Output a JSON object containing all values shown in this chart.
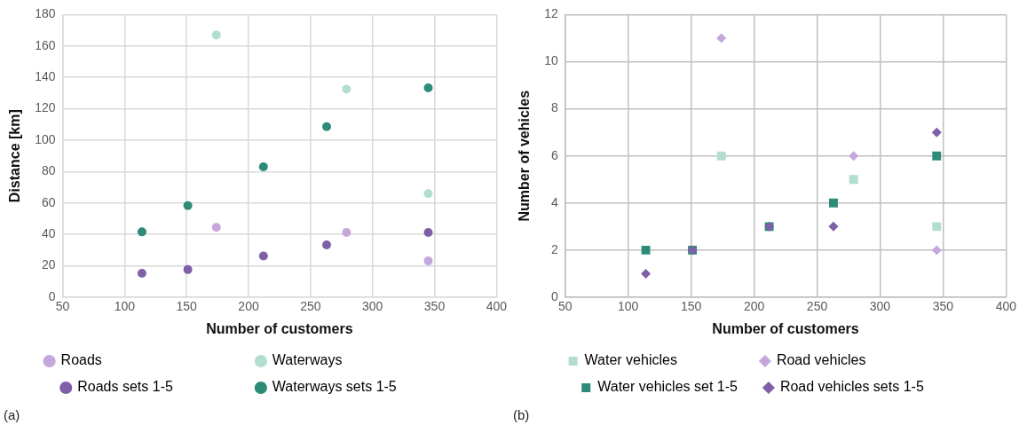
{
  "chart_data": [
    {
      "type": "scatter",
      "xlabel": "Number of customers",
      "ylabel": "Distance [km]",
      "xlim": [
        50,
        400
      ],
      "xticks": [
        50,
        100,
        150,
        200,
        250,
        300,
        350,
        400
      ],
      "ylim": [
        0,
        180
      ],
      "yticks": [
        0,
        20,
        40,
        60,
        80,
        100,
        120,
        140,
        160,
        180
      ],
      "grid": true,
      "legend": "bottom",
      "marker": "circle",
      "annotations": [
        "(a)"
      ],
      "series": [
        {
          "name": "Roads",
          "color": "#c5a7dc",
          "x": [
            174,
            279,
            345
          ],
          "values": [
            44.5,
            41.2,
            23.1
          ]
        },
        {
          "name": "Waterways",
          "color": "#b3ddd0",
          "x": [
            174,
            279,
            345
          ],
          "values": [
            167,
            132.5,
            66
          ]
        },
        {
          "name": "Roads sets 1-5",
          "color": "#7f5fa8",
          "x": [
            114,
            151,
            212,
            263,
            345
          ],
          "values": [
            15.3,
            17.6,
            26.3,
            33.3,
            41.2
          ]
        },
        {
          "name": "Waterways sets 1-5",
          "color": "#2e8b78",
          "x": [
            114,
            151,
            212,
            263,
            345
          ],
          "values": [
            41.6,
            58.4,
            83.1,
            108.6,
            133.3
          ]
        }
      ]
    },
    {
      "type": "scatter",
      "xlabel": "Number of customers",
      "ylabel": "Number of vehicles",
      "xlim": [
        50,
        400
      ],
      "xticks": [
        50,
        100,
        150,
        200,
        250,
        300,
        350,
        400
      ],
      "ylim": [
        0,
        12
      ],
      "yticks": [
        0,
        2,
        4,
        6,
        8,
        10,
        12
      ],
      "grid": true,
      "legend": "bottom",
      "annotations": [
        "(b)"
      ],
      "series": [
        {
          "name": "Water vehicles",
          "color": "#b3ddd0",
          "marker": "square",
          "x": [
            174,
            279,
            345
          ],
          "values": [
            6,
            5,
            3
          ]
        },
        {
          "name": "Road vehicles",
          "color": "#c5a7dc",
          "marker": "diamond",
          "x": [
            174,
            279,
            345
          ],
          "values": [
            11,
            6,
            2
          ]
        },
        {
          "name": "Water vehicles set 1-5",
          "color": "#2e8b78",
          "marker": "square",
          "x": [
            114,
            151,
            212,
            263,
            345
          ],
          "values": [
            2,
            2,
            3,
            4,
            6
          ]
        },
        {
          "name": "Road vehicles sets 1-5",
          "color": "#7f5fa8",
          "marker": "diamond",
          "x": [
            114,
            151,
            212,
            263,
            345
          ],
          "values": [
            1,
            2,
            3,
            3,
            7
          ]
        }
      ]
    }
  ]
}
